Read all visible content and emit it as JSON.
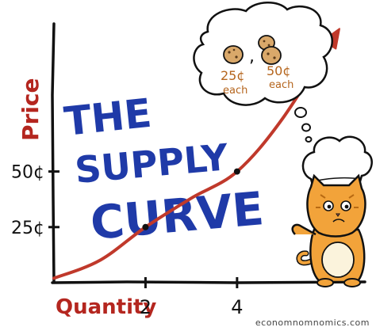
{
  "chart_data": {
    "type": "line",
    "title_lines": [
      "THE",
      "SUPPLY",
      "CURVE"
    ],
    "xlabel": "Quantity",
    "ylabel": "Price",
    "x_ticks": [
      {
        "value": 2,
        "label": "2"
      },
      {
        "value": 4,
        "label": "4"
      }
    ],
    "y_ticks": [
      {
        "value": 25,
        "label": "25¢"
      },
      {
        "value": 50,
        "label": "50¢"
      }
    ],
    "series": [
      {
        "points": [
          {
            "x": 0,
            "y": 2
          },
          {
            "x": 1,
            "y": 10
          },
          {
            "x": 2,
            "y": 25
          },
          {
            "x": 3,
            "y": 38
          },
          {
            "x": 4,
            "y": 50
          },
          {
            "x": 5,
            "y": 74
          },
          {
            "x": 6.2,
            "y": 113
          }
        ]
      }
    ],
    "highlight_points": [
      {
        "x": 2,
        "y": 25
      },
      {
        "x": 4,
        "y": 50
      }
    ],
    "xlim": [
      0,
      7
    ],
    "ylim": [
      0,
      120
    ],
    "thought_bubble": {
      "left_price": "25¢",
      "left_unit": "each",
      "separator": ",",
      "right_price": "50¢",
      "right_unit": "each"
    },
    "colors": {
      "curve": "#c0392b",
      "title": "#1f3aa8",
      "ylabel": "#b4261f",
      "xlabel": "#b4261f",
      "axis": "#111111",
      "cat_body": "#f2a33a",
      "bubble_text": "#b5651d"
    }
  },
  "watermark": "economnomnomics.com"
}
